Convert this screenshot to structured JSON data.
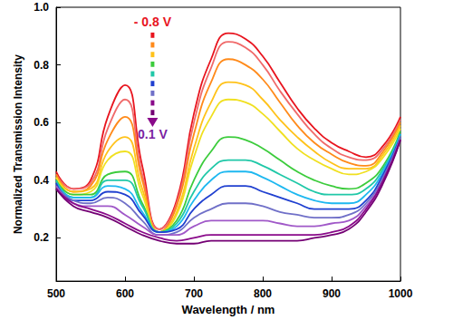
{
  "chart_data": {
    "type": "line",
    "x_label": "Wavelength / nm",
    "y_label": "Normalized Transmission Intensity",
    "xlim": [
      500,
      1000
    ],
    "xticks": [
      500,
      600,
      700,
      800,
      900,
      1000
    ],
    "ylim": [
      0.05,
      1.0
    ],
    "yticks": [
      0.2,
      0.4,
      0.6,
      0.8,
      {
        "value": 1.0,
        "label": "1.0"
      }
    ],
    "grid": false,
    "x": [
      500,
      525,
      550,
      575,
      600,
      625,
      650,
      675,
      700,
      725,
      750,
      775,
      800,
      825,
      850,
      875,
      900,
      925,
      950,
      975,
      1000
    ],
    "series": [
      {
        "color": "#e8141e",
        "values": [
          0.43,
          0.37,
          0.4,
          0.62,
          0.73,
          0.45,
          0.23,
          0.33,
          0.63,
          0.82,
          0.91,
          0.89,
          0.83,
          0.74,
          0.65,
          0.58,
          0.53,
          0.5,
          0.48,
          0.52,
          0.62
        ]
      },
      {
        "color": "#f06a6a",
        "values": [
          0.42,
          0.37,
          0.39,
          0.58,
          0.68,
          0.42,
          0.23,
          0.32,
          0.6,
          0.79,
          0.88,
          0.86,
          0.8,
          0.71,
          0.63,
          0.56,
          0.51,
          0.48,
          0.47,
          0.51,
          0.61
        ]
      },
      {
        "color": "#ff8a1a",
        "values": [
          0.42,
          0.36,
          0.38,
          0.54,
          0.62,
          0.4,
          0.22,
          0.31,
          0.56,
          0.74,
          0.82,
          0.8,
          0.75,
          0.67,
          0.59,
          0.53,
          0.49,
          0.46,
          0.45,
          0.5,
          0.6
        ]
      },
      {
        "color": "#ffc21a",
        "values": [
          0.41,
          0.36,
          0.37,
          0.5,
          0.55,
          0.37,
          0.22,
          0.29,
          0.51,
          0.67,
          0.74,
          0.73,
          0.68,
          0.61,
          0.55,
          0.5,
          0.46,
          0.44,
          0.44,
          0.49,
          0.59
        ]
      },
      {
        "color": "#f0e020",
        "values": [
          0.41,
          0.35,
          0.36,
          0.47,
          0.5,
          0.35,
          0.22,
          0.28,
          0.48,
          0.62,
          0.68,
          0.67,
          0.63,
          0.57,
          0.51,
          0.47,
          0.44,
          0.42,
          0.43,
          0.48,
          0.58
        ]
      },
      {
        "color": "#3ccc3c",
        "values": [
          0.4,
          0.35,
          0.35,
          0.42,
          0.43,
          0.32,
          0.22,
          0.26,
          0.4,
          0.5,
          0.55,
          0.54,
          0.51,
          0.47,
          0.43,
          0.4,
          0.38,
          0.37,
          0.39,
          0.45,
          0.57
        ]
      },
      {
        "color": "#20c8a8",
        "values": [
          0.4,
          0.34,
          0.34,
          0.4,
          0.4,
          0.31,
          0.22,
          0.25,
          0.36,
          0.44,
          0.47,
          0.47,
          0.45,
          0.42,
          0.39,
          0.36,
          0.35,
          0.35,
          0.37,
          0.44,
          0.56
        ]
      },
      {
        "color": "#1eb8f0",
        "values": [
          0.39,
          0.34,
          0.34,
          0.38,
          0.37,
          0.29,
          0.22,
          0.24,
          0.33,
          0.4,
          0.43,
          0.43,
          0.41,
          0.38,
          0.35,
          0.33,
          0.32,
          0.32,
          0.35,
          0.43,
          0.56
        ]
      },
      {
        "color": "#2040d0",
        "values": [
          0.39,
          0.33,
          0.33,
          0.36,
          0.35,
          0.28,
          0.22,
          0.23,
          0.3,
          0.35,
          0.38,
          0.38,
          0.36,
          0.34,
          0.32,
          0.3,
          0.3,
          0.3,
          0.33,
          0.42,
          0.55
        ]
      },
      {
        "color": "#7070c8",
        "values": [
          0.38,
          0.33,
          0.32,
          0.34,
          0.32,
          0.26,
          0.21,
          0.22,
          0.27,
          0.3,
          0.32,
          0.32,
          0.31,
          0.29,
          0.28,
          0.27,
          0.27,
          0.28,
          0.32,
          0.41,
          0.55
        ]
      },
      {
        "color": "#a058c8",
        "values": [
          0.38,
          0.32,
          0.31,
          0.31,
          0.28,
          0.24,
          0.21,
          0.21,
          0.24,
          0.26,
          0.26,
          0.26,
          0.26,
          0.25,
          0.24,
          0.24,
          0.25,
          0.26,
          0.31,
          0.4,
          0.54
        ]
      },
      {
        "color": "#8a0a8a",
        "values": [
          0.37,
          0.32,
          0.3,
          0.28,
          0.25,
          0.22,
          0.2,
          0.19,
          0.2,
          0.21,
          0.21,
          0.21,
          0.21,
          0.21,
          0.21,
          0.21,
          0.22,
          0.24,
          0.3,
          0.4,
          0.54
        ]
      },
      {
        "color": "#740074",
        "values": [
          0.37,
          0.31,
          0.29,
          0.27,
          0.24,
          0.21,
          0.19,
          0.18,
          0.18,
          0.19,
          0.19,
          0.19,
          0.19,
          0.19,
          0.19,
          0.2,
          0.21,
          0.23,
          0.29,
          0.39,
          0.54
        ]
      }
    ],
    "annotations": [
      {
        "text": "- 0.8 V",
        "x": 640,
        "y": 0.95,
        "color": "#e8141e"
      },
      {
        "text": "0.1 V",
        "x": 640,
        "y": 0.56,
        "color": "#7a1fa2"
      }
    ]
  }
}
